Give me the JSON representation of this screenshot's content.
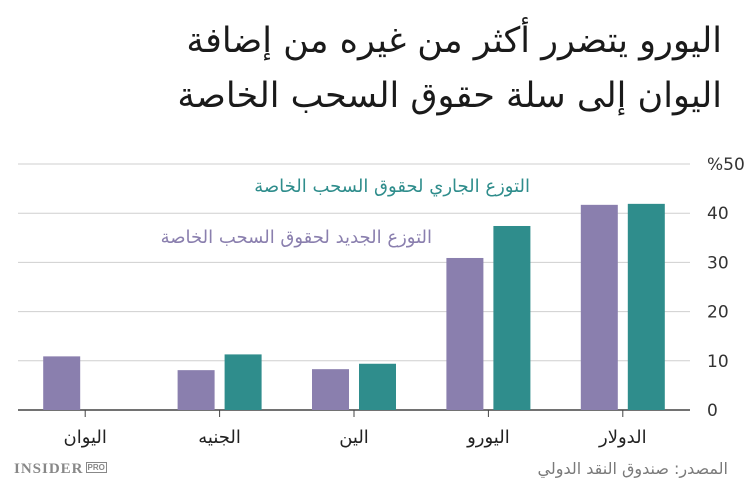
{
  "title": "اليورو يتضرر أكثر من غيره من إضافة اليوان إلى سلة حقوق السحب الخاصة",
  "source": "المصدر: صندوق النقد الدولي",
  "logo": {
    "main": "INSIDER",
    "badge": "PRO"
  },
  "colors": {
    "current": "#2f8d8c",
    "new": "#8a7fae",
    "axis": "#444444",
    "grid": "#cfcfcf"
  },
  "chart_data": {
    "type": "bar",
    "title": "اليورو يتضرر أكثر من غيره من إضافة اليوان إلى سلة حقوق السحب الخاصة",
    "categories": [
      "الدولار",
      "اليورو",
      "الين",
      "الجنيه",
      "اليوان"
    ],
    "series": [
      {
        "name": "التوزع الجاري لحقوق السحب الخاصة",
        "color": "#2f8d8c",
        "values": [
          41.9,
          37.4,
          9.4,
          11.3,
          null
        ]
      },
      {
        "name": "التوزع الجديد لحقوق السحب الخاصة",
        "color": "#8a7fae",
        "values": [
          41.7,
          30.9,
          8.3,
          8.1,
          10.9
        ]
      }
    ],
    "ylim": [
      0,
      50
    ],
    "yticks": [
      "0",
      "10",
      "20",
      "30",
      "40",
      "%50"
    ],
    "grid": true,
    "y_axis_side": "right",
    "category_order": "right-to-left"
  }
}
